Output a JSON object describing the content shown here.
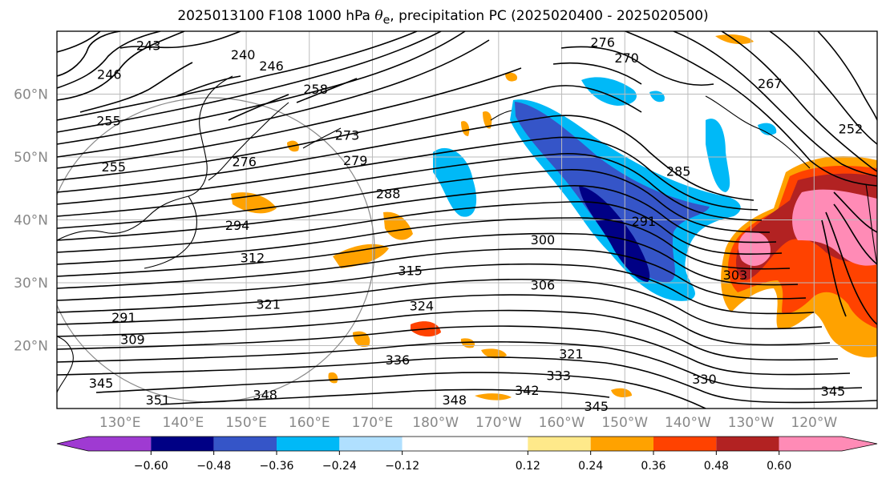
{
  "title": {
    "prefix": "2025013100 F108 1000 hPa ",
    "symbol": "θ",
    "subscript": "e",
    "suffix": ", precipitation PC (2025020400 - 2025020500)"
  },
  "map": {
    "lon_range": [
      120,
      250
    ],
    "lat_range": [
      10,
      70
    ],
    "lat_ticks": [
      {
        "lat": 60,
        "label": "60°N"
      },
      {
        "lat": 50,
        "label": "50°N"
      },
      {
        "lat": 40,
        "label": "40°N"
      },
      {
        "lat": 30,
        "label": "30°N"
      },
      {
        "lat": 20,
        "label": "20°N"
      }
    ],
    "lon_ticks": [
      {
        "lon": 130,
        "label": "130°E"
      },
      {
        "lon": 140,
        "label": "140°E"
      },
      {
        "lon": 150,
        "label": "150°E"
      },
      {
        "lon": 160,
        "label": "160°E"
      },
      {
        "lon": 170,
        "label": "170°E"
      },
      {
        "lon": 180,
        "label": "180°W"
      },
      {
        "lon": 190,
        "label": "170°W"
      },
      {
        "lon": 200,
        "label": "160°W"
      },
      {
        "lon": 210,
        "label": "150°W"
      },
      {
        "lon": 220,
        "label": "140°W"
      },
      {
        "lon": 230,
        "label": "130°W"
      },
      {
        "lon": 240,
        "label": "120°W"
      }
    ],
    "gridlines": true,
    "contour_labels": [
      {
        "text": "243",
        "lon": 134.5,
        "lat": 67.8
      },
      {
        "text": "240",
        "lon": 149.5,
        "lat": 66.3
      },
      {
        "text": "246",
        "lon": 154,
        "lat": 64.5
      },
      {
        "text": "246",
        "lon": 128.3,
        "lat": 63.2
      },
      {
        "text": "255",
        "lon": 128.2,
        "lat": 55.8
      },
      {
        "text": "258",
        "lon": 161,
        "lat": 60.8
      },
      {
        "text": "273",
        "lon": 166,
        "lat": 53.5
      },
      {
        "text": "276",
        "lon": 149.7,
        "lat": 49.3
      },
      {
        "text": "279",
        "lon": 167.3,
        "lat": 49.5
      },
      {
        "text": "255",
        "lon": 129,
        "lat": 48.5
      },
      {
        "text": "288",
        "lon": 172.5,
        "lat": 44.2
      },
      {
        "text": "285",
        "lon": 218.5,
        "lat": 47.8
      },
      {
        "text": "291",
        "lon": 213,
        "lat": 39.8
      },
      {
        "text": "300",
        "lon": 197,
        "lat": 36.9
      },
      {
        "text": "294",
        "lon": 148.6,
        "lat": 39.2
      },
      {
        "text": "312",
        "lon": 151,
        "lat": 34
      },
      {
        "text": "315",
        "lon": 176,
        "lat": 32
      },
      {
        "text": "306",
        "lon": 197,
        "lat": 29.7
      },
      {
        "text": "303",
        "lon": 227.5,
        "lat": 31.3
      },
      {
        "text": "321",
        "lon": 153.5,
        "lat": 26.6
      },
      {
        "text": "324",
        "lon": 177.8,
        "lat": 26.4
      },
      {
        "text": "291",
        "lon": 130.6,
        "lat": 24.5
      },
      {
        "text": "309",
        "lon": 132,
        "lat": 21
      },
      {
        "text": "336",
        "lon": 174,
        "lat": 17.8
      },
      {
        "text": "321",
        "lon": 201.5,
        "lat": 18.7
      },
      {
        "text": "333",
        "lon": 199.5,
        "lat": 15.3
      },
      {
        "text": "330",
        "lon": 222.6,
        "lat": 14.7
      },
      {
        "text": "342",
        "lon": 194.5,
        "lat": 12.9
      },
      {
        "text": "345",
        "lon": 127,
        "lat": 14.1
      },
      {
        "text": "348",
        "lon": 153,
        "lat": 12.2
      },
      {
        "text": "351",
        "lon": 136,
        "lat": 11.4
      },
      {
        "text": "348",
        "lon": 183,
        "lat": 11.4
      },
      {
        "text": "345",
        "lon": 205.5,
        "lat": 10.4
      },
      {
        "text": "345",
        "lon": 243,
        "lat": 12.8
      },
      {
        "text": "276",
        "lon": 206.5,
        "lat": 68.3
      },
      {
        "text": "270",
        "lon": 210.3,
        "lat": 65.8
      },
      {
        "text": "267",
        "lon": 233,
        "lat": 61.7
      },
      {
        "text": "252",
        "lon": 245.8,
        "lat": 54.5
      }
    ],
    "colors": {
      "contour": "#000000",
      "grid": "#bbbbbb",
      "frame": "#000000",
      "tick_label": "#888888"
    }
  },
  "colorbar": {
    "boundaries": [
      -0.72,
      -0.6,
      -0.48,
      -0.36,
      -0.24,
      -0.12,
      0.12,
      0.24,
      0.36,
      0.48,
      0.6,
      0.72
    ],
    "colors": [
      "#9f3ad2",
      "#000085",
      "#3555c8",
      "#00b9f7",
      "#b0e0ff",
      "#ffffff",
      "#fee98a",
      "#ffa200",
      "#ff4200",
      "#b22222",
      "#ff8bb6"
    ],
    "tick_labels": [
      "−0.60",
      "−0.48",
      "−0.36",
      "−0.24",
      "−0.12",
      "0.12",
      "0.24",
      "0.36",
      "0.48",
      "0.60"
    ],
    "extend": "both"
  }
}
